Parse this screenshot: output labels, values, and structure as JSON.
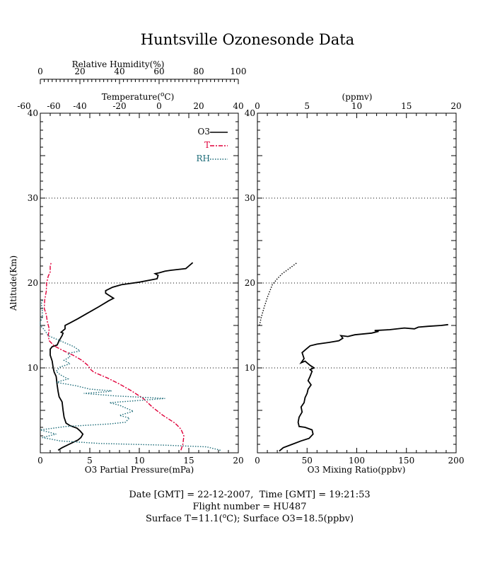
{
  "chart_data": [
    {
      "type": "line",
      "title": "Huntsville Ozonesonde Data",
      "ylabel": "Altitude(Km)",
      "ylim": [
        0,
        40
      ],
      "yticks": [
        "10",
        "20",
        "30",
        "40"
      ],
      "grid": "dotted horizontal",
      "legend_position": "top-right",
      "axes": {
        "o3_pp": {
          "label": "O3 Partial Pressure(mPa)",
          "range": [
            0,
            20
          ],
          "ticks": [
            "0",
            "5",
            "10",
            "15",
            "20"
          ],
          "position": "bottom"
        },
        "temperature": {
          "label": "Temperature(°C)",
          "label_main": "Temperature(",
          "label_sup": "o",
          "label_end": "C)",
          "range": [
            -60,
            40
          ],
          "ticks": [
            "-60",
            "-60",
            "-40",
            "-20",
            "0",
            "20",
            "40"
          ],
          "position": "top"
        },
        "rh": {
          "label": "Relative Humidity(%)",
          "range": [
            0,
            100
          ],
          "ticks": [
            "0",
            "20",
            "40",
            "60",
            "80",
            "100"
          ],
          "position": "top-outer"
        }
      },
      "series": [
        {
          "name": "O3",
          "axis": "o3_pp",
          "color": "#000000",
          "dash": "solid",
          "points": [
            [
              1.8,
              0.3
            ],
            [
              2.2,
              0.6
            ],
            [
              2.9,
              1.0
            ],
            [
              3.8,
              1.5
            ],
            [
              4.1,
              1.8
            ],
            [
              4.3,
              2.2
            ],
            [
              4.0,
              2.6
            ],
            [
              3.7,
              2.9
            ],
            [
              3.0,
              3.2
            ],
            [
              2.6,
              3.5
            ],
            [
              2.4,
              4.2
            ],
            [
              2.3,
              5.0
            ],
            [
              2.2,
              6.0
            ],
            [
              1.9,
              6.6
            ],
            [
              1.8,
              7.2
            ],
            [
              1.7,
              8.0
            ],
            [
              1.6,
              9.0
            ],
            [
              1.4,
              9.5
            ],
            [
              1.3,
              10.0
            ],
            [
              1.2,
              10.8
            ],
            [
              1.0,
              11.5
            ],
            [
              1.0,
              12.2
            ],
            [
              1.2,
              12.5
            ],
            [
              1.7,
              12.7
            ],
            [
              1.9,
              13.2
            ],
            [
              2.2,
              13.8
            ],
            [
              2.3,
              14.1
            ],
            [
              2.1,
              14.2
            ],
            [
              2.5,
              14.6
            ],
            [
              2.5,
              15.0
            ],
            [
              3.0,
              15.3
            ],
            [
              3.8,
              15.8
            ],
            [
              4.7,
              16.4
            ],
            [
              5.9,
              17.2
            ],
            [
              6.9,
              17.9
            ],
            [
              7.4,
              18.2
            ],
            [
              7.0,
              18.5
            ],
            [
              6.6,
              18.8
            ],
            [
              6.6,
              19.1
            ],
            [
              7.3,
              19.5
            ],
            [
              8.2,
              19.8
            ],
            [
              10.0,
              20.1
            ],
            [
              11.8,
              20.5
            ],
            [
              11.9,
              20.9
            ],
            [
              11.6,
              21.1
            ],
            [
              12.0,
              21.2
            ],
            [
              12.6,
              21.4
            ],
            [
              13.2,
              21.5
            ],
            [
              14.7,
              21.7
            ],
            [
              15.0,
              22.0
            ],
            [
              15.4,
              22.4
            ]
          ]
        },
        {
          "name": "T",
          "axis": "temperature",
          "color": "#e0003a",
          "dash": "dashdot",
          "points": [
            [
              11.0,
              0.3
            ],
            [
              12.0,
              1.0
            ],
            [
              12.5,
              2.0
            ],
            [
              11.0,
              2.8
            ],
            [
              8.0,
              3.5
            ],
            [
              2.0,
              4.4
            ],
            [
              -3.0,
              5.3
            ],
            [
              -8.0,
              6.4
            ],
            [
              -14.0,
              7.3
            ],
            [
              -20.0,
              8.1
            ],
            [
              -26.0,
              8.8
            ],
            [
              -33.0,
              9.5
            ],
            [
              -34.5,
              9.8
            ],
            [
              -36.0,
              10.3
            ],
            [
              -39.0,
              10.9
            ],
            [
              -43.5,
              11.5
            ],
            [
              -49.0,
              12.1
            ],
            [
              -53.0,
              12.6
            ],
            [
              -55.5,
              13.2
            ],
            [
              -56.0,
              13.8
            ],
            [
              -55.5,
              14.6
            ],
            [
              -56.5,
              15.5
            ],
            [
              -57.0,
              16.3
            ],
            [
              -58.0,
              17.0
            ],
            [
              -57.8,
              18.0
            ],
            [
              -57.0,
              19.0
            ],
            [
              -56.8,
              20.0
            ],
            [
              -56.0,
              20.8
            ],
            [
              -55.0,
              21.3
            ],
            [
              -55.0,
              22.0
            ],
            [
              -54.5,
              22.4
            ]
          ]
        },
        {
          "name": "RH",
          "axis": "rh",
          "color": "#1c6b78",
          "dash": "dotted",
          "points": [
            [
              91,
              0.3
            ],
            [
              84,
              0.7
            ],
            [
              63,
              0.9
            ],
            [
              30,
              1.1
            ],
            [
              10,
              1.4
            ],
            [
              1,
              1.8
            ],
            [
              8,
              2.2
            ],
            [
              0,
              2.7
            ],
            [
              13,
              3.1
            ],
            [
              35,
              3.4
            ],
            [
              43,
              3.6
            ],
            [
              45,
              4.1
            ],
            [
              40,
              4.4
            ],
            [
              47,
              4.9
            ],
            [
              44,
              5.2
            ],
            [
              40,
              5.6
            ],
            [
              35,
              5.9
            ],
            [
              63,
              6.4
            ],
            [
              38,
              6.7
            ],
            [
              22,
              7.0
            ],
            [
              34,
              7.2
            ],
            [
              36,
              7.3
            ],
            [
              25,
              7.5
            ],
            [
              18,
              7.9
            ],
            [
              8,
              8.3
            ],
            [
              14,
              8.7
            ],
            [
              10,
              9.2
            ],
            [
              8,
              9.6
            ],
            [
              10,
              10.1
            ],
            [
              15,
              10.5
            ],
            [
              12,
              10.9
            ],
            [
              15,
              11.3
            ],
            [
              14,
              11.7
            ],
            [
              20,
              12.0
            ],
            [
              17,
              12.5
            ],
            [
              12,
              13.0
            ],
            [
              4,
              13.8
            ],
            [
              2,
              14.5
            ],
            [
              0,
              15.0
            ],
            [
              0,
              15.4
            ],
            [
              1,
              16.0
            ],
            [
              1,
              16.5
            ],
            [
              1,
              17.0
            ],
            [
              0.5,
              17.5
            ],
            [
              1,
              18.0
            ]
          ]
        }
      ]
    },
    {
      "type": "line",
      "axes": {
        "ppbv": {
          "label": "O3 Mixing Ratio(ppbv)",
          "range": [
            0,
            200
          ],
          "ticks": [
            "0",
            "50",
            "100",
            "150",
            "200"
          ],
          "position": "bottom"
        },
        "ppmv": {
          "label": "(ppmv)",
          "range": [
            0,
            20
          ],
          "ticks": [
            "0",
            "5",
            "10",
            "15",
            "20"
          ],
          "position": "top"
        }
      },
      "ylim": [
        0,
        40
      ],
      "yticks": [
        "10",
        "20",
        "30",
        "40"
      ],
      "grid": "dotted horizontal",
      "series": [
        {
          "name": "",
          "axis": "ppbv",
          "color": "#000000",
          "dash": "solid",
          "points": [
            [
              22,
              0.2
            ],
            [
              26,
              0.6
            ],
            [
              35,
              1.0
            ],
            [
              44,
              1.4
            ],
            [
              52,
              1.7
            ],
            [
              56,
              2.2
            ],
            [
              55,
              2.7
            ],
            [
              48,
              3.0
            ],
            [
              42,
              3.1
            ],
            [
              41,
              3.6
            ],
            [
              42,
              4.2
            ],
            [
              45,
              4.8
            ],
            [
              44,
              5.4
            ],
            [
              47,
              5.9
            ],
            [
              48,
              6.5
            ],
            [
              50,
              7.0
            ],
            [
              51,
              7.5
            ],
            [
              54,
              8.0
            ],
            [
              51,
              8.5
            ],
            [
              53,
              9.0
            ],
            [
              55,
              9.6
            ],
            [
              53,
              9.8
            ],
            [
              57,
              10.0
            ],
            [
              53,
              10.3
            ],
            [
              48,
              10.8
            ],
            [
              44,
              10.6
            ],
            [
              47,
              11.1
            ],
            [
              45,
              11.8
            ],
            [
              49,
              12.2
            ],
            [
              53,
              12.6
            ],
            [
              60,
              12.8
            ],
            [
              72,
              13.0
            ],
            [
              82,
              13.2
            ],
            [
              86,
              13.5
            ],
            [
              84,
              13.8
            ],
            [
              91,
              13.7
            ],
            [
              98,
              13.9
            ],
            [
              115,
              14.1
            ],
            [
              122,
              14.3
            ],
            [
              118,
              14.4
            ],
            [
              133,
              14.5
            ],
            [
              148,
              14.7
            ],
            [
              158,
              14.6
            ],
            [
              162,
              14.8
            ],
            [
              172,
              14.9
            ],
            [
              185,
              15.0
            ],
            [
              192,
              15.1
            ]
          ]
        },
        {
          "name": "",
          "axis": "ppmv",
          "color": "#000000",
          "dash": "dotted",
          "points": [
            [
              0.2,
              15.0
            ],
            [
              0.4,
              16.0
            ],
            [
              0.7,
              17.2
            ],
            [
              1.0,
              18.3
            ],
            [
              1.3,
              19.2
            ],
            [
              1.5,
              19.8
            ],
            [
              2.0,
              20.5
            ],
            [
              2.5,
              21.1
            ],
            [
              3.2,
              21.7
            ],
            [
              4.0,
              22.4
            ]
          ]
        }
      ]
    }
  ],
  "legend": [
    {
      "label": "O3",
      "color": "#000000",
      "dash": "solid"
    },
    {
      "label": "T",
      "color": "#e0003a",
      "dash": "dashdot"
    },
    {
      "label": "RH",
      "color": "#1c6b78",
      "dash": "dotted"
    }
  ],
  "footer": {
    "line1": "Date [GMT] = 22-12-2007,  Time [GMT] = 19:21:53",
    "line2": "Flight number = HU487",
    "line3_a": "Surface T=11.1(",
    "line3_sup": "o",
    "line3_b": "C); Surface O3=18.5(ppbv)"
  }
}
